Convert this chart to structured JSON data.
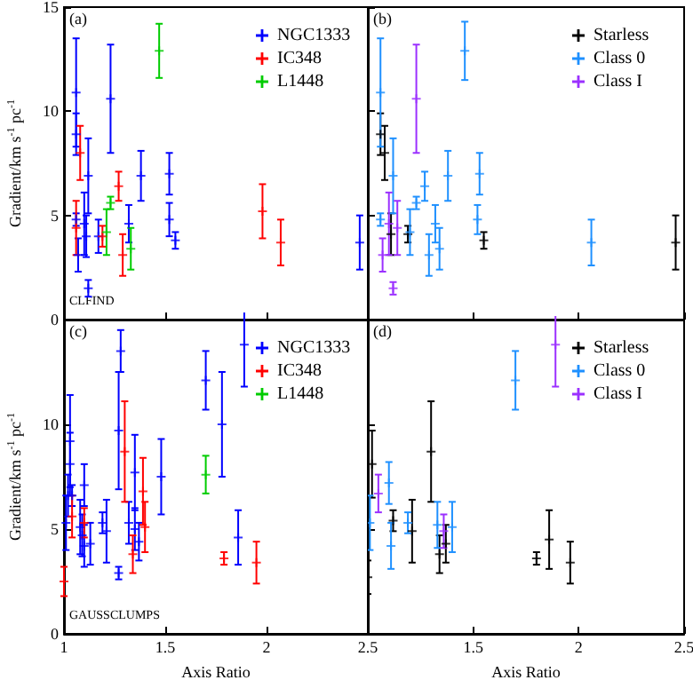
{
  "chart_data": [
    {
      "type": "scatter",
      "ylabel": "Gradient/km s$^{-1}$ pc$^{-1}$",
      "annotations": [
        "(a)",
        "CLFIND"
      ],
      "xlim": [
        1,
        2.5
      ],
      "ylim": [
        0,
        15
      ],
      "xticks": [
        1,
        1.5,
        2,
        2.5
      ],
      "yticks": [
        0,
        5,
        10,
        15
      ],
      "tick_labels": "y",
      "marker": "cross",
      "legend": "top right",
      "grid": false,
      "series": [
        {
          "name": "NGC1333",
          "color": "#0000ff",
          "x": [
            1.06,
            1.06,
            1.06,
            1.07,
            1.1,
            1.11,
            1.12,
            1.12,
            1.17,
            1.23,
            1.32,
            1.38,
            1.52,
            1.52,
            1.55,
            2.46
          ],
          "values": [
            10.9,
            8.9,
            4.8,
            3.1,
            4.6,
            4.0,
            6.9,
            1.5,
            4.0,
            10.6,
            4.6,
            6.9,
            7.0,
            4.8,
            3.8,
            3.7
          ],
          "errors": [
            2.6,
            1.0,
            0.3,
            0.8,
            1.5,
            1.0,
            1.8,
            0.4,
            0.8,
            2.6,
            0.9,
            1.2,
            1.0,
            0.8,
            0.4,
            1.3
          ]
        },
        {
          "name": "IC348",
          "color": "#ff0000",
          "x": [
            1.08,
            1.06,
            1.19,
            1.27,
            1.29,
            1.98,
            2.07
          ],
          "values": [
            8.0,
            4.4,
            4.0,
            6.4,
            3.1,
            5.2,
            3.7
          ],
          "errors": [
            1.3,
            1.3,
            0.5,
            0.7,
            1.0,
            1.3,
            1.1
          ]
        },
        {
          "name": "L1448",
          "color": "#00cc00",
          "x": [
            1.21,
            1.23,
            1.33,
            1.47
          ],
          "values": [
            4.2,
            5.6,
            3.4,
            12.9
          ],
          "errors": [
            1.1,
            0.3,
            1.0,
            1.3
          ]
        }
      ]
    },
    {
      "type": "scatter",
      "annotations": [
        "(b)"
      ],
      "xlim": [
        1,
        2.5
      ],
      "ylim": [
        0,
        15
      ],
      "xticks": [
        1,
        1.5,
        2,
        2.5
      ],
      "yticks": [
        0,
        5,
        10,
        15
      ],
      "tick_labels": false,
      "marker": "cross",
      "legend": "top right",
      "grid": false,
      "series": [
        {
          "name": "Starless",
          "color": "#000000",
          "x": [
            1.08,
            1.06,
            1.11,
            1.19,
            1.55,
            2.46
          ],
          "values": [
            8.0,
            8.9,
            4.1,
            4.1,
            3.8,
            3.7
          ],
          "errors": [
            1.3,
            1.0,
            1.0,
            0.4,
            0.4,
            1.3
          ]
        },
        {
          "name": "Class 0",
          "color": "#1e90ff",
          "x": [
            1.06,
            1.06,
            1.12,
            1.2,
            1.23,
            1.27,
            1.29,
            1.32,
            1.34,
            1.38,
            1.46,
            1.53,
            1.52,
            2.06
          ],
          "values": [
            10.9,
            4.8,
            6.9,
            4.2,
            5.6,
            6.4,
            3.1,
            4.6,
            3.4,
            6.9,
            12.9,
            7.0,
            4.8,
            3.7
          ],
          "errors": [
            2.6,
            0.3,
            1.8,
            1.1,
            0.3,
            0.7,
            1.0,
            0.9,
            1.0,
            1.2,
            1.4,
            1.0,
            0.7,
            1.1
          ]
        },
        {
          "name": "Class I",
          "color": "#9b30ff",
          "x": [
            1.23,
            1.1,
            1.07,
            1.12,
            1.14
          ],
          "values": [
            10.6,
            4.6,
            3.1,
            1.5,
            4.4
          ],
          "errors": [
            2.6,
            1.5,
            0.8,
            0.3,
            1.3
          ]
        }
      ]
    },
    {
      "type": "scatter",
      "xlabel": "Axis Ratio",
      "ylabel": "Gradient/km s$^{-1}$ pc$^{-1}$",
      "annotations": [
        "(c)",
        "GAUSSCLUMPS"
      ],
      "xlim": [
        1,
        2.5
      ],
      "ylim": [
        0,
        15
      ],
      "xticks": [
        1,
        1.5,
        2,
        2.5
      ],
      "yticks": [
        0,
        5,
        10,
        {
          "value": 15,
          "label": null
        }
      ],
      "marker": "cross",
      "legend": "top right",
      "grid": false,
      "series": [
        {
          "name": "NGC1333",
          "color": "#0000ff",
          "x": [
            1.01,
            1.02,
            1.03,
            1.03,
            1.04,
            1.08,
            1.1,
            1.09,
            1.1,
            1.13,
            1.19,
            1.21,
            1.27,
            1.27,
            1.28,
            1.32,
            1.35,
            1.35,
            1.37,
            1.48,
            1.7,
            1.78,
            1.86,
            1.89
          ],
          "values": [
            5.3,
            6.6,
            8.1,
            9.2,
            6.6,
            5.1,
            7.1,
            4.7,
            4.2,
            4.3,
            5.3,
            4.9,
            2.9,
            9.7,
            13.5,
            5.3,
            7.7,
            5.0,
            4.4,
            7.5,
            12.1,
            10.0,
            4.6,
            13.8
          ],
          "errors": [
            1.3,
            1.0,
            1.5,
            2.2,
            0.5,
            1.3,
            1.0,
            1.0,
            1.0,
            1.0,
            0.5,
            1.5,
            0.3,
            2.8,
            1.0,
            1.0,
            1.8,
            1.0,
            0.9,
            1.8,
            1.4,
            2.5,
            1.3,
            2.0
          ]
        },
        {
          "name": "IC348",
          "color": "#ff0000",
          "x": [
            1.0,
            1.04,
            1.1,
            1.3,
            1.34,
            1.39,
            1.4,
            1.79,
            1.95
          ],
          "values": [
            2.5,
            5.6,
            5.3,
            8.7,
            3.8,
            6.8,
            5.1,
            3.6,
            3.4
          ],
          "errors": [
            0.7,
            1.0,
            0.7,
            2.4,
            0.9,
            1.6,
            1.2,
            0.3,
            1.0
          ]
        },
        {
          "name": "L1448",
          "color": "#00cc00",
          "x": [
            1.7
          ],
          "values": [
            7.6
          ],
          "errors": [
            0.9
          ]
        }
      ]
    },
    {
      "type": "scatter",
      "xlabel": "Axis Ratio",
      "annotations": [
        "(d)"
      ],
      "xlim": [
        1,
        2.5
      ],
      "ylim": [
        0,
        15
      ],
      "xticks": [
        1.5,
        2,
        2.5
      ],
      "yticks": [
        0,
        5,
        10,
        15
      ],
      "tick_labels": "x",
      "marker": "cross",
      "legend": "top right",
      "grid": false,
      "series": [
        {
          "name": "Starless",
          "color": "#000000",
          "x": [
            1.0,
            1.02,
            1.12,
            1.21,
            1.3,
            1.34,
            1.37,
            1.8,
            1.86,
            1.96
          ],
          "values": [
            2.7,
            8.1,
            5.4,
            4.9,
            8.7,
            3.8,
            4.3,
            3.6,
            4.5,
            3.4
          ],
          "errors": [
            0.8,
            1.6,
            0.5,
            1.5,
            2.4,
            0.9,
            0.9,
            0.3,
            1.4,
            1.0
          ]
        },
        {
          "name": "Class 0",
          "color": "#1e90ff",
          "x": [
            1.01,
            1.1,
            1.11,
            1.19,
            1.33,
            1.4,
            1.7
          ],
          "values": [
            5.3,
            7.2,
            4.2,
            5.3,
            5.2,
            5.1,
            12.1
          ],
          "errors": [
            1.3,
            1.0,
            1.1,
            0.5,
            1.1,
            1.2,
            1.4
          ]
        },
        {
          "name": "Class I",
          "color": "#9b30ff",
          "x": [
            1.05,
            1.36,
            1.89
          ],
          "values": [
            6.7,
            4.9,
            13.8
          ],
          "errors": [
            0.9,
            0.8,
            2.0
          ]
        }
      ]
    }
  ]
}
